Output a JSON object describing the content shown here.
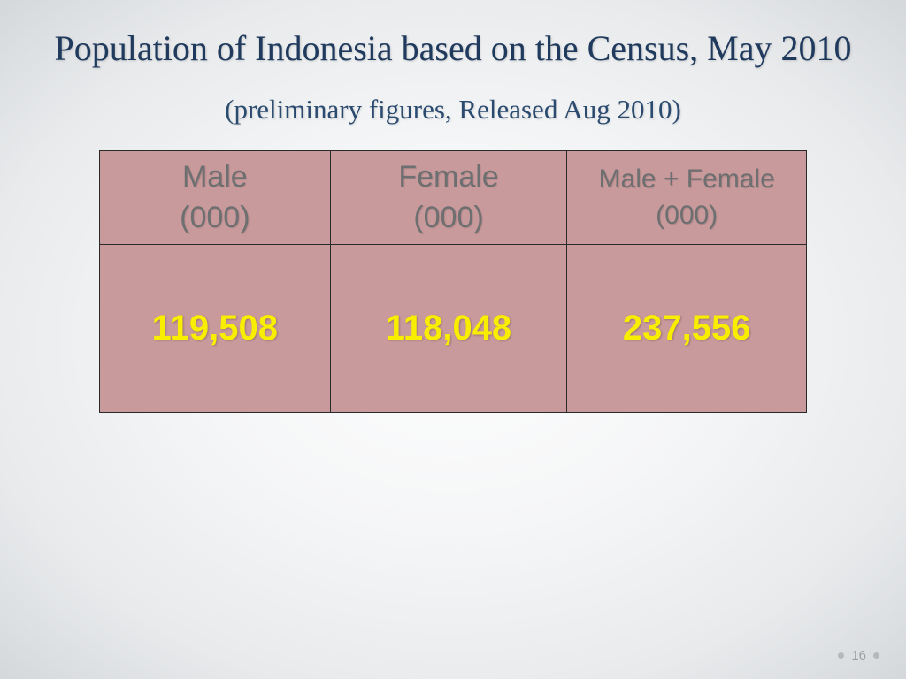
{
  "colors": {
    "title": "#1f3a5d",
    "subtitle": "#2a4a6f",
    "cell_bg": "#c99a9c",
    "header_text": "#6e6f70",
    "value_text": "#f9ed00",
    "border": "#2a2a2a",
    "page_num": "#9da0a3",
    "dot": "#b6b9bc"
  },
  "title": "Population of Indonesia based on the Census, May 2010",
  "subtitle": "(preliminary figures, Released Aug 2010)",
  "table": {
    "columns": [
      {
        "label": "Male",
        "unit": "(000)"
      },
      {
        "label": "Female",
        "unit": "(000)"
      },
      {
        "label": "Male + Female",
        "unit": "(000)"
      }
    ],
    "values": [
      "119,508",
      "118,048",
      "237,556"
    ]
  },
  "page_number": "16"
}
